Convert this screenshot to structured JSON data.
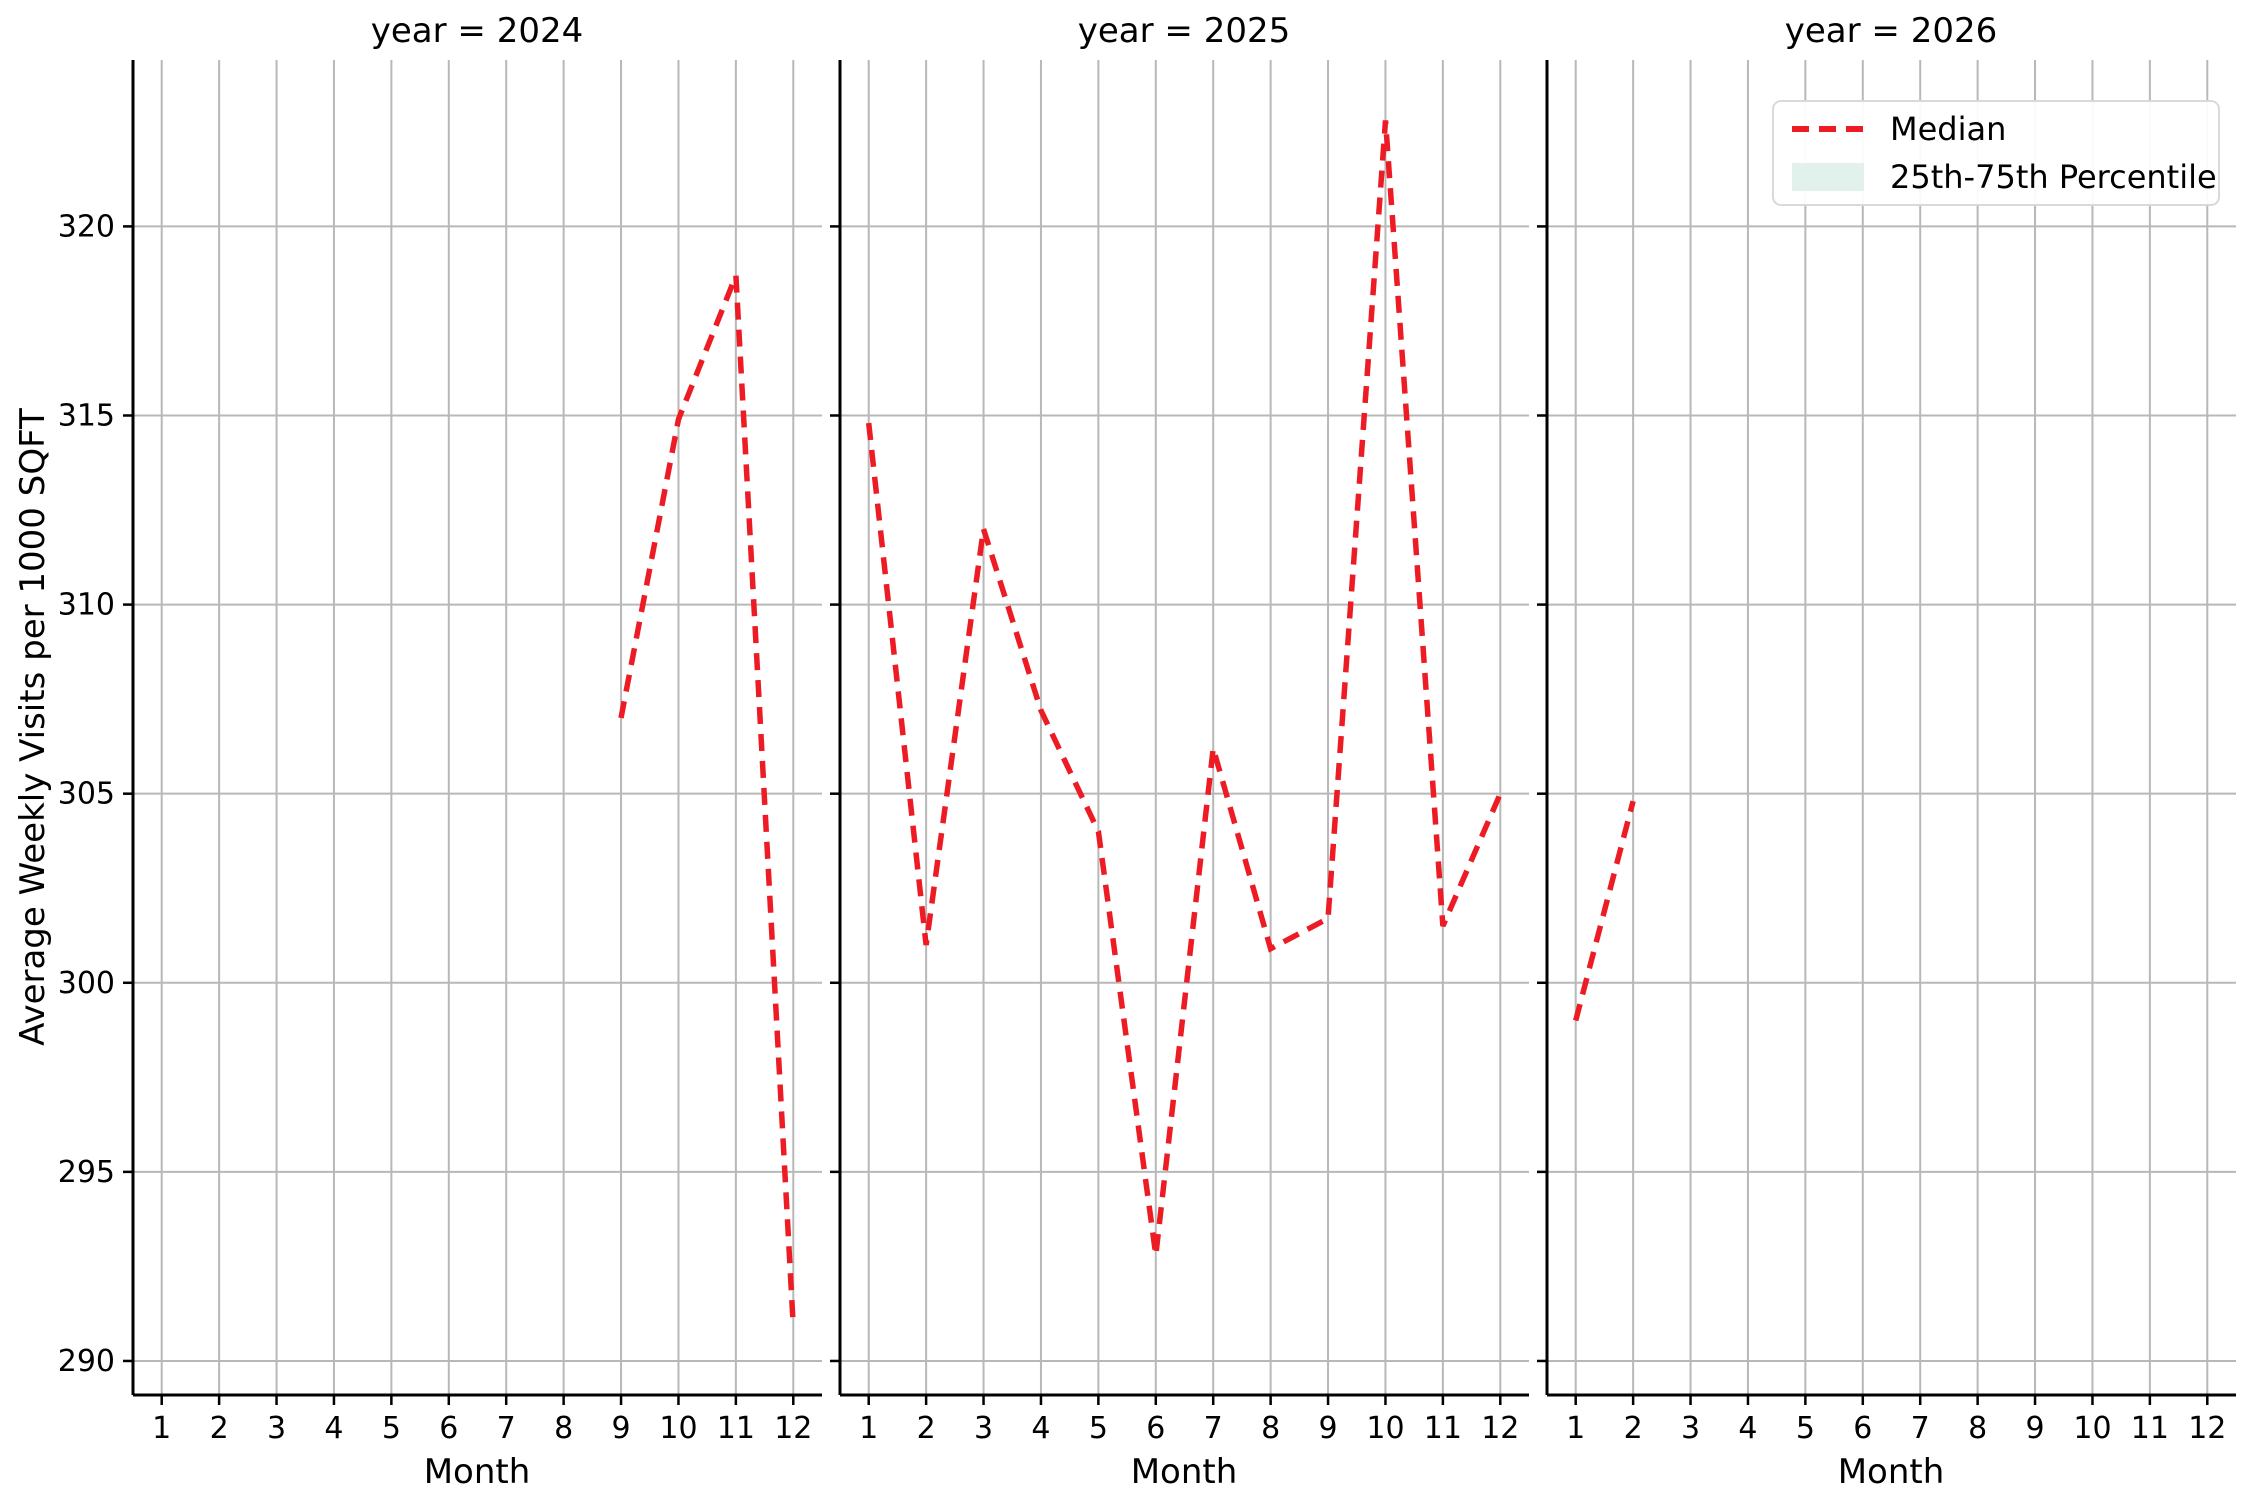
{
  "chart_data": {
    "type": "line",
    "style": "dashed",
    "series_name": "Median",
    "xlabel": "Month",
    "ylabel": "Average Weekly Visits per 1000 SQFT",
    "x_ticks": [
      1,
      2,
      3,
      4,
      5,
      6,
      7,
      8,
      9,
      10,
      11,
      12
    ],
    "y_ticks": [
      290,
      295,
      300,
      305,
      310,
      315,
      320
    ],
    "xlim": [
      0.5,
      12.5
    ],
    "ylim": [
      289.1,
      324.4
    ],
    "grid": true,
    "facets": [
      {
        "title": "year = 2024",
        "x": [
          9,
          10,
          11,
          12
        ],
        "y": [
          307.0,
          314.9,
          318.7,
          290.9
        ]
      },
      {
        "title": "year = 2025",
        "x": [
          1,
          2,
          3,
          4,
          5,
          6,
          7,
          8,
          9,
          10,
          11,
          12
        ],
        "y": [
          314.8,
          301.0,
          312.0,
          307.2,
          304.0,
          292.8,
          306.2,
          300.9,
          301.7,
          322.8,
          301.5,
          305.0
        ]
      },
      {
        "title": "year = 2026",
        "x": [
          1,
          2
        ],
        "y": [
          299.0,
          304.8
        ]
      }
    ],
    "legend": {
      "position": "upper right",
      "entries": [
        {
          "label": "Median",
          "type": "dashed-line",
          "color": "#ed1c24"
        },
        {
          "label": "25th-75th Percentile",
          "type": "patch",
          "color": "#e3f1ec"
        }
      ]
    },
    "colors": {
      "median_line": "#ed1c24",
      "percentile_band": "#e3f1ec",
      "grid": "#b8b8b8",
      "spine": "#000000",
      "background": "#ffffff"
    }
  }
}
